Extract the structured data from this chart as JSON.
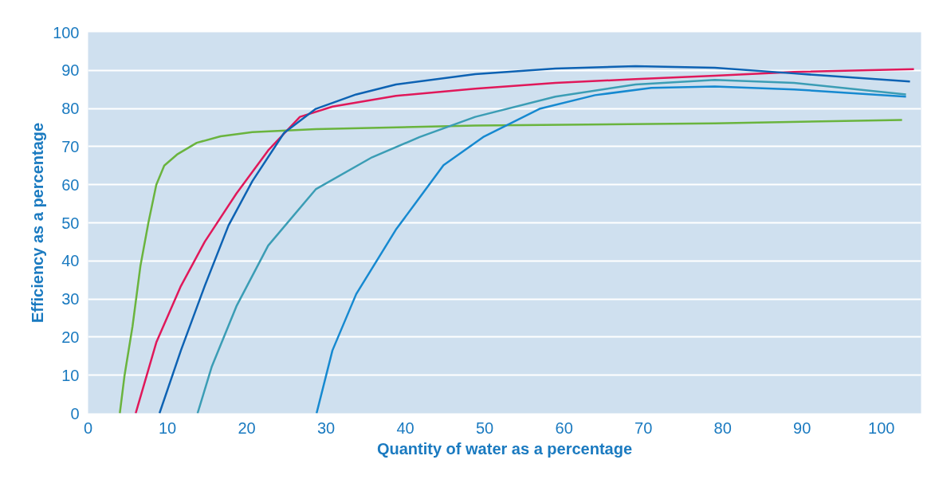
{
  "chart_data": {
    "type": "line",
    "xlabel": "Quantity of water as a percentage",
    "ylabel": "Efficiency as a percentage",
    "xlim": [
      0,
      105
    ],
    "ylim": [
      0,
      100
    ],
    "xticks": [
      0,
      10,
      20,
      30,
      40,
      50,
      60,
      70,
      80,
      90,
      100
    ],
    "yticks": [
      0,
      10,
      20,
      30,
      40,
      50,
      60,
      70,
      80,
      90,
      100
    ],
    "grid": "y",
    "marker": "none",
    "line_style": "solid",
    "series": [
      {
        "color": "#6ab43e",
        "x": [
          4.0,
          4.6,
          5.6,
          6.6,
          7.6,
          8.6,
          9.6,
          11.2,
          13.7,
          16.7,
          20.7,
          28.7,
          48.8,
          79,
          102.6
        ],
        "values": [
          0,
          10,
          22.8,
          38.7,
          50,
          60,
          65,
          67.9,
          71,
          72.7,
          73.8,
          74.6,
          75.5,
          76.1,
          77
        ]
      },
      {
        "color": "#e0185a",
        "x": [
          6.0,
          8.6,
          11.7,
          14.7,
          18.7,
          22.7,
          26.7,
          30.8,
          38.8,
          48.8,
          58.9,
          69,
          79,
          89,
          104.1
        ],
        "values": [
          0,
          18.6,
          33.4,
          45,
          57.7,
          69,
          77.8,
          80.5,
          83.3,
          85.2,
          86.7,
          87.7,
          88.6,
          89.6,
          90.3
        ]
      },
      {
        "color": "#0d62b3",
        "x": [
          9.0,
          11.7,
          14.7,
          17.7,
          20.7,
          24.7,
          28.7,
          33.8,
          38.8,
          48.8,
          58.9,
          69,
          79,
          89,
          103.6
        ],
        "values": [
          0,
          16.5,
          33.4,
          49.3,
          60.9,
          73.6,
          79.9,
          83.7,
          86.3,
          89,
          90.5,
          91.1,
          90.7,
          89.2,
          87.1
        ]
      },
      {
        "color": "#3b9db5",
        "x": [
          13.8,
          15.6,
          18.7,
          22.7,
          28.7,
          35.8,
          41.8,
          48.8,
          58.9,
          69,
          79,
          89,
          103.1
        ],
        "values": [
          0,
          12.3,
          28.1,
          44,
          58.8,
          67.2,
          72.5,
          77.8,
          83.1,
          86.3,
          87.5,
          86.7,
          83.7
        ]
      },
      {
        "color": "#1689d0",
        "x": [
          28.8,
          30.8,
          33.8,
          38.8,
          44.8,
          49.8,
          56.9,
          63.9,
          71,
          79,
          89,
          103.1
        ],
        "values": [
          0,
          16.5,
          31.3,
          48.2,
          65.1,
          72.5,
          79.9,
          83.5,
          85.4,
          85.8,
          85,
          83.1
        ]
      }
    ]
  }
}
